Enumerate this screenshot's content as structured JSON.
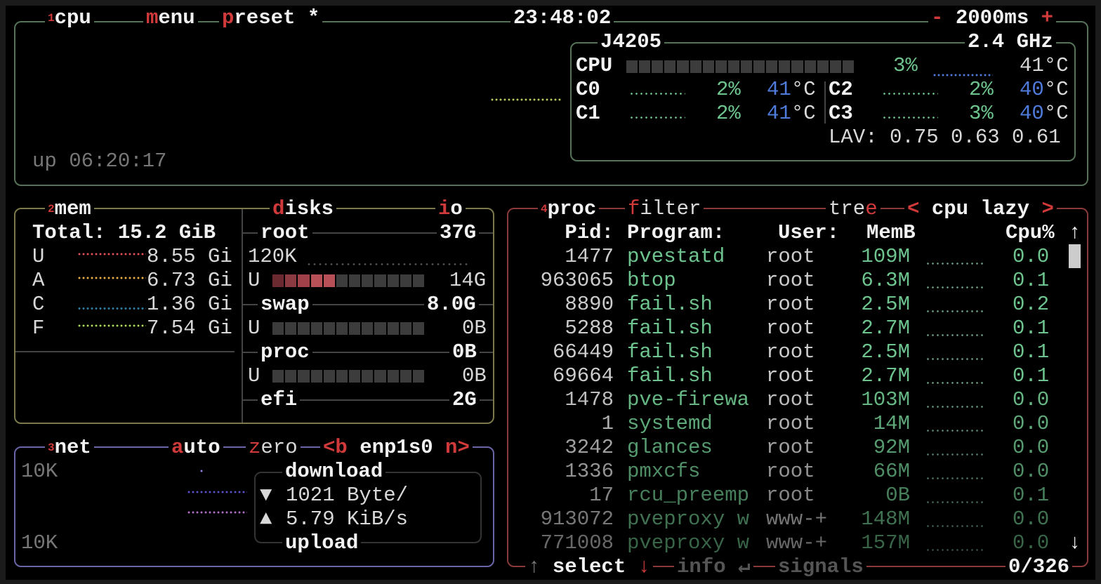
{
  "cpu_box": {
    "num": "1",
    "title": "cpu",
    "menu": {
      "hot": "m",
      "rest": "enu"
    },
    "preset": {
      "hot": "p",
      "rest": "reset *"
    },
    "clock": "23:48:02",
    "interval": {
      "minus": "-",
      "value": "2000ms",
      "plus": "+"
    },
    "uptime": "up 06:20:17",
    "model": "J4205",
    "freq": "2.4 GHz",
    "total": {
      "label": "CPU",
      "percent": "3%",
      "temp": "41°C",
      "bar_fraction": 0.03
    },
    "cores": [
      {
        "label": "C0",
        "percent": "2%",
        "temp": "41",
        "unit": "°C"
      },
      {
        "label": "C1",
        "percent": "2%",
        "temp": "41",
        "unit": "°C"
      },
      {
        "label": "C2",
        "percent": "2%",
        "temp": "40",
        "unit": "°C"
      },
      {
        "label": "C3",
        "percent": "3%",
        "temp": "40",
        "unit": "°C"
      }
    ],
    "load_avg": "LAV: 0.75 0.63 0.61"
  },
  "mem_box": {
    "num": "2",
    "title": "mem",
    "total": "Total: 15.2 GiB",
    "rows": [
      {
        "label": "U",
        "value": "8.55 Gi",
        "color": "#e0505a"
      },
      {
        "label": "A",
        "value": "6.73 Gi",
        "color": "#e8b040"
      },
      {
        "label": "C",
        "value": "1.36 Gi",
        "color": "#2e7fa8"
      },
      {
        "label": "F",
        "value": "7.54 Gi",
        "color": "#a8d860"
      }
    ]
  },
  "disks_box": {
    "title": {
      "hot": "d",
      "rest": "isks"
    },
    "io": {
      "hot": "i",
      "rest": "o"
    },
    "io_value": "120K",
    "disks": [
      {
        "name": "root",
        "size": "37G",
        "used_label": "U",
        "used": "14G",
        "fraction": 0.38
      },
      {
        "name": "swap",
        "size": "8.0G",
        "used_label": "U",
        "used": "0B",
        "fraction": 0
      },
      {
        "name": "proc",
        "size": "0B",
        "used_label": "U",
        "used": "0B",
        "fraction": 0
      },
      {
        "name": "efi",
        "size": "2G"
      }
    ]
  },
  "net_box": {
    "num": "3",
    "title": "net",
    "auto": {
      "hot": "a",
      "rest": "uto"
    },
    "zero": {
      "hot": "z",
      "rest": "ero"
    },
    "prev": "<b",
    "iface": "enp1s0",
    "next": "n>",
    "scale_top": "10K",
    "scale_bottom": "10K",
    "download_label": "download",
    "download_icon": "▼",
    "download_rate": "1021 Byte/",
    "upload_icon": "▲",
    "upload_rate": "5.79 KiB/s",
    "upload_label": "upload"
  },
  "proc_box": {
    "num": "4",
    "title": "proc",
    "filter": {
      "hot": "f",
      "rest": "ilter"
    },
    "tree": {
      "rest": "tre",
      "hot": "e"
    },
    "sort_prev": "<",
    "sort": "cpu lazy",
    "sort_next": ">",
    "headers": {
      "pid": "Pid:",
      "program": "Program:",
      "user": "User:",
      "mem": "MemB",
      "cpu": "Cpu%"
    },
    "rows": [
      {
        "pid": "1477",
        "program": "pvestatd",
        "user": "root",
        "mem": "109M",
        "cpu": "0.0"
      },
      {
        "pid": "963065",
        "program": "btop",
        "user": "root",
        "mem": "6.3M",
        "cpu": "0.1"
      },
      {
        "pid": "8890",
        "program": "fail.sh",
        "user": "root",
        "mem": "2.5M",
        "cpu": "0.2"
      },
      {
        "pid": "5288",
        "program": "fail.sh",
        "user": "root",
        "mem": "2.7M",
        "cpu": "0.1"
      },
      {
        "pid": "66449",
        "program": "fail.sh",
        "user": "root",
        "mem": "2.5M",
        "cpu": "0.1"
      },
      {
        "pid": "69664",
        "program": "fail.sh",
        "user": "root",
        "mem": "2.7M",
        "cpu": "0.1"
      },
      {
        "pid": "1478",
        "program": "pve-firewa",
        "user": "root",
        "mem": "103M",
        "cpu": "0.0"
      },
      {
        "pid": "1",
        "program": "systemd",
        "user": "root",
        "mem": "14M",
        "cpu": "0.0"
      },
      {
        "pid": "3242",
        "program": "glances",
        "user": "root",
        "mem": "92M",
        "cpu": "0.0"
      },
      {
        "pid": "1336",
        "program": "pmxcfs",
        "user": "root",
        "mem": "66M",
        "cpu": "0.0"
      },
      {
        "pid": "17",
        "program": "rcu_preemp",
        "user": "root",
        "mem": "0B",
        "cpu": "0.1"
      },
      {
        "pid": "913072",
        "program": "pveproxy w",
        "user": "www-+",
        "mem": "148M",
        "cpu": "0.0"
      },
      {
        "pid": "771008",
        "program": "pveproxy w",
        "user": "www-+",
        "mem": "157M",
        "cpu": "0.0"
      }
    ],
    "scroll_up": "↑",
    "scroll_down": "↓",
    "footer": {
      "up": "↑",
      "select": "select",
      "down": "↓",
      "info": "info",
      "enter": "↵",
      "signals": "signals",
      "count": "0/326"
    }
  },
  "colors": {
    "cpu_border": "#56735a",
    "mem_border": "#7c7a4a",
    "net_border": "#6a64a8",
    "proc_border": "#8a3a3a",
    "hotkey": "#d03a3a",
    "value_green": "#6ec48e",
    "temp_blue": "#4f7bdc"
  }
}
